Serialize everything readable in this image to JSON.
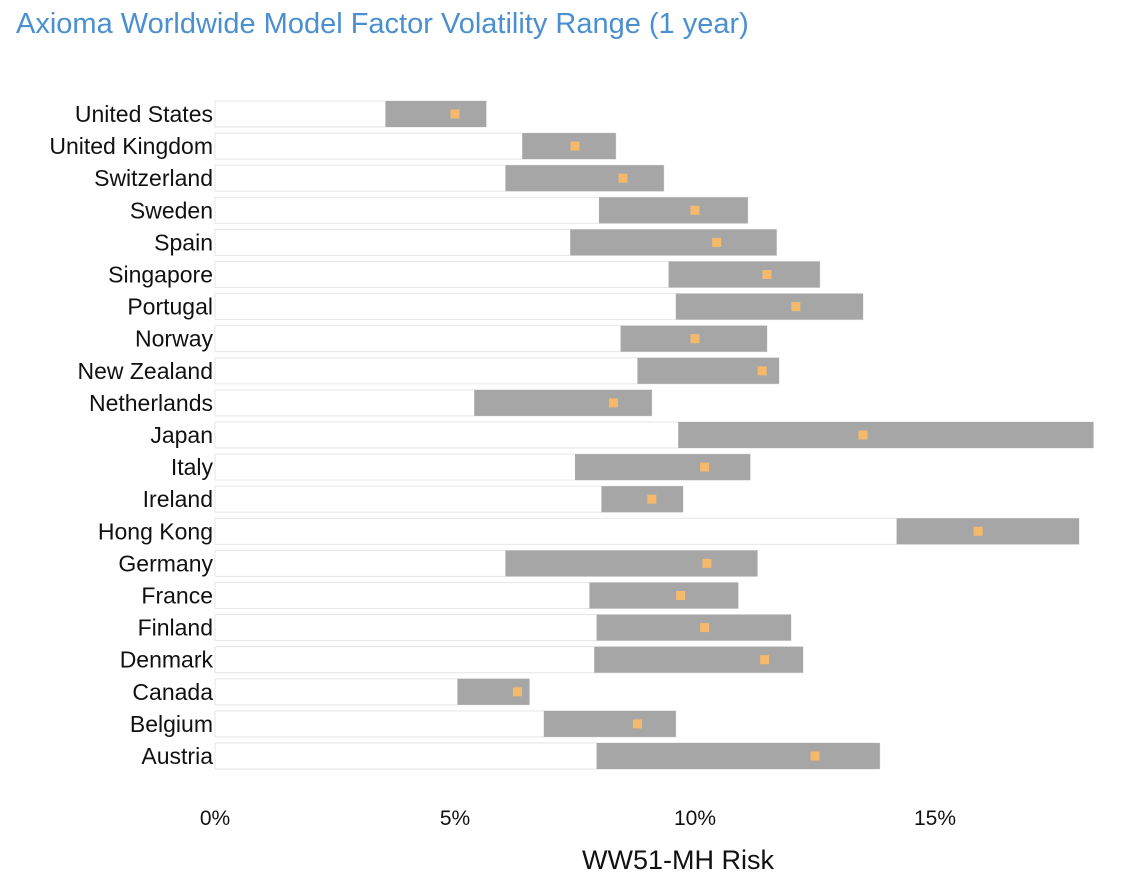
{
  "chart_data": {
    "type": "bar",
    "title": "Axioma Worldwide Model Factor Volatility Range (1 year)",
    "xlabel": "WW51-MH Risk",
    "ylabel": "",
    "xlim": [
      0,
      18.5
    ],
    "xticks": [
      0,
      5,
      10,
      15
    ],
    "xtick_labels": [
      "0%",
      "5%",
      "10%",
      "15%"
    ],
    "grid": false,
    "legend": "none",
    "colors": {
      "range": "#a6a6a6",
      "current": "#f5b96b",
      "track": "#ffffff",
      "track_border": "#e6e6e6"
    },
    "categories": [
      "United States",
      "United Kingdom",
      "Switzerland",
      "Sweden",
      "Spain",
      "Singapore",
      "Portugal",
      "Norway",
      "New Zealand",
      "Netherlands",
      "Japan",
      "Italy",
      "Ireland",
      "Hong Kong",
      "Germany",
      "France",
      "Finland",
      "Denmark",
      "Canada",
      "Belgium",
      "Austria"
    ],
    "series": [
      {
        "values": [
          3.55,
          6.4,
          6.05,
          8.0,
          7.4,
          9.45,
          9.6,
          8.45,
          8.8,
          5.4,
          9.65,
          7.5,
          8.05,
          14.2,
          6.05,
          7.8,
          7.95,
          7.9,
          5.05,
          6.85,
          7.95
        ]
      },
      {
        "values": [
          5.65,
          8.35,
          9.35,
          11.1,
          11.7,
          12.6,
          13.5,
          11.5,
          11.75,
          9.1,
          18.3,
          11.15,
          9.75,
          18.0,
          11.3,
          10.9,
          12.0,
          12.25,
          6.55,
          9.6,
          13.85
        ]
      },
      {
        "values": [
          5.0,
          7.5,
          8.5,
          10.0,
          10.45,
          11.5,
          12.1,
          10.0,
          11.4,
          8.3,
          13.5,
          10.2,
          9.1,
          15.9,
          10.25,
          9.7,
          10.2,
          11.45,
          6.3,
          8.8,
          12.5
        ]
      }
    ]
  }
}
